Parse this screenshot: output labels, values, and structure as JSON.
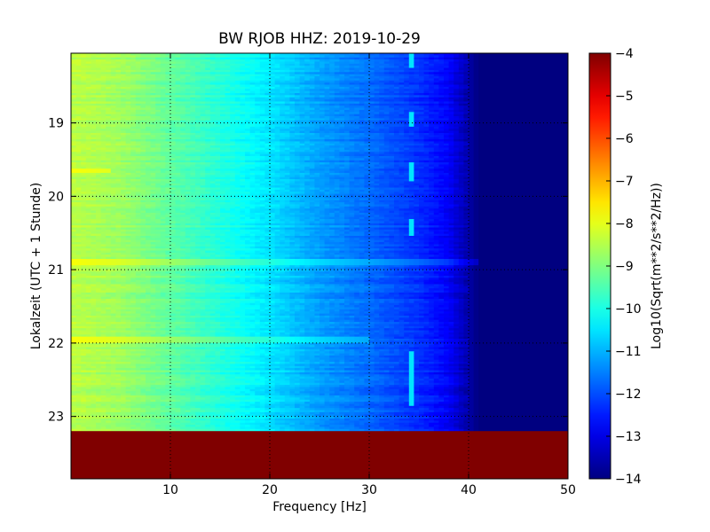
{
  "chart_data": {
    "type": "heatmap",
    "title": "BW RJOB HHZ: 2019-10-29",
    "xlabel": "Frequency [Hz]",
    "ylabel": "Lokalzeit (UTC + 1 Stunde)",
    "xlim": [
      0,
      50
    ],
    "ylim": [
      23.85,
      18.05
    ],
    "x_ticks": [
      10,
      20,
      30,
      40,
      50
    ],
    "y_ticks": [
      19,
      20,
      21,
      22,
      23
    ],
    "grid": true,
    "colormap": "jet",
    "colorbar": {
      "label": "Log10(Sqrt(m**2/s**2/Hz))",
      "range": [
        -14,
        -4
      ],
      "ticks": [
        -4,
        -5,
        -6,
        -7,
        -8,
        -9,
        -10,
        -11,
        -12,
        -13,
        -14
      ]
    },
    "time_range_with_data": [
      18.05,
      23.2
    ],
    "no_data_value": -4,
    "spectral_profile": {
      "frequency_hz": [
        0,
        5,
        10,
        15,
        20,
        25,
        30,
        35,
        38,
        40,
        41,
        45,
        50
      ],
      "log10_amplitude": [
        -8.4,
        -8.7,
        -9.3,
        -9.9,
        -10.5,
        -11.2,
        -11.7,
        -12.3,
        -12.8,
        -13.6,
        -14,
        -14,
        -14
      ]
    },
    "features": [
      {
        "frequency_hz": 34.2,
        "time_start": 18.05,
        "time_end": 18.25,
        "value": -10.5
      },
      {
        "frequency_hz": 34.2,
        "time_start": 18.85,
        "time_end": 19.05,
        "value": -10.5
      },
      {
        "frequency_hz": 34.2,
        "time_start": 19.55,
        "time_end": 19.8,
        "value": -10.5
      },
      {
        "frequency_hz": 34.2,
        "time_start": 20.3,
        "time_end": 20.55,
        "value": -10.5
      },
      {
        "frequency_hz": 34.2,
        "time_start": 22.1,
        "time_end": 22.85,
        "value": -10.5
      }
    ],
    "bright_lines": [
      {
        "time": 19.65,
        "frequency_to": 4,
        "value": -7.5
      },
      {
        "time": 20.9,
        "frequency_to": 41,
        "value": -11.3
      },
      {
        "time": 21.95,
        "frequency_to": 30,
        "value": -11.0
      }
    ]
  }
}
